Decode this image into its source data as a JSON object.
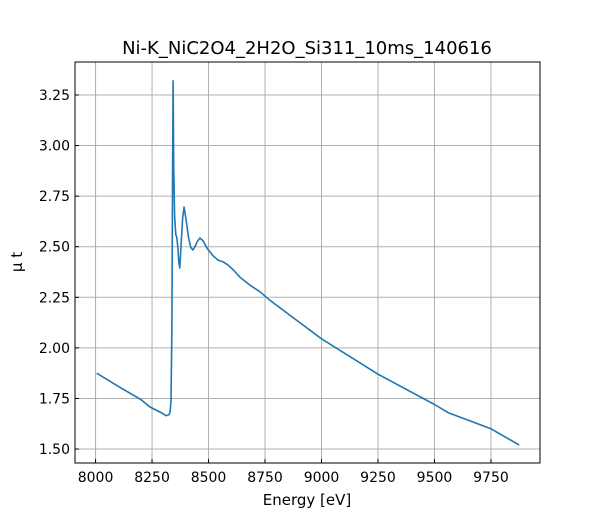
{
  "chart_data": {
    "type": "line",
    "title": "Ni-K_NiC2O4_2H2O_Si311_10ms_140616",
    "xlabel": "Energy [eV]",
    "ylabel": "μ t",
    "xlim": [
      7909,
      9967
    ],
    "ylim": [
      1.431,
      3.413
    ],
    "xticks": [
      8000,
      8250,
      8500,
      8750,
      9000,
      9250,
      9500,
      9750
    ],
    "xtick_labels": [
      "8000",
      "8250",
      "8500",
      "8750",
      "9000",
      "9250",
      "9500",
      "9750"
    ],
    "yticks": [
      1.5,
      1.75,
      2.0,
      2.25,
      2.5,
      2.75,
      3.0,
      3.25
    ],
    "ytick_labels": [
      "1.50",
      "1.75",
      "2.00",
      "2.25",
      "2.50",
      "2.75",
      "3.00",
      "3.25"
    ],
    "grid": true,
    "color": "#1f77b4",
    "series": [
      {
        "name": "mu_t",
        "x": [
          8005,
          8100,
          8200,
          8241,
          8290,
          8312,
          8325,
          8330,
          8334,
          8338,
          8341,
          8343,
          8346,
          8350,
          8355,
          8359,
          8364,
          8369,
          8373,
          8378,
          8385,
          8392,
          8400,
          8412,
          8422,
          8431,
          8440,
          8450,
          8462,
          8475,
          8495,
          8520,
          8542,
          8565,
          8586,
          8610,
          8639,
          8684,
          8730,
          8772,
          8850,
          9000,
          9250,
          9500,
          9560,
          9750,
          9875
        ],
        "y": [
          1.875,
          1.81,
          1.745,
          1.708,
          1.68,
          1.665,
          1.67,
          1.683,
          1.74,
          2.1,
          2.9,
          3.32,
          2.9,
          2.65,
          2.56,
          2.548,
          2.5,
          2.42,
          2.395,
          2.5,
          2.64,
          2.696,
          2.64,
          2.54,
          2.495,
          2.484,
          2.5,
          2.525,
          2.543,
          2.53,
          2.49,
          2.455,
          2.434,
          2.425,
          2.41,
          2.385,
          2.35,
          2.31,
          2.275,
          2.235,
          2.17,
          2.045,
          1.87,
          1.72,
          1.68,
          1.6,
          1.52
        ]
      }
    ]
  }
}
